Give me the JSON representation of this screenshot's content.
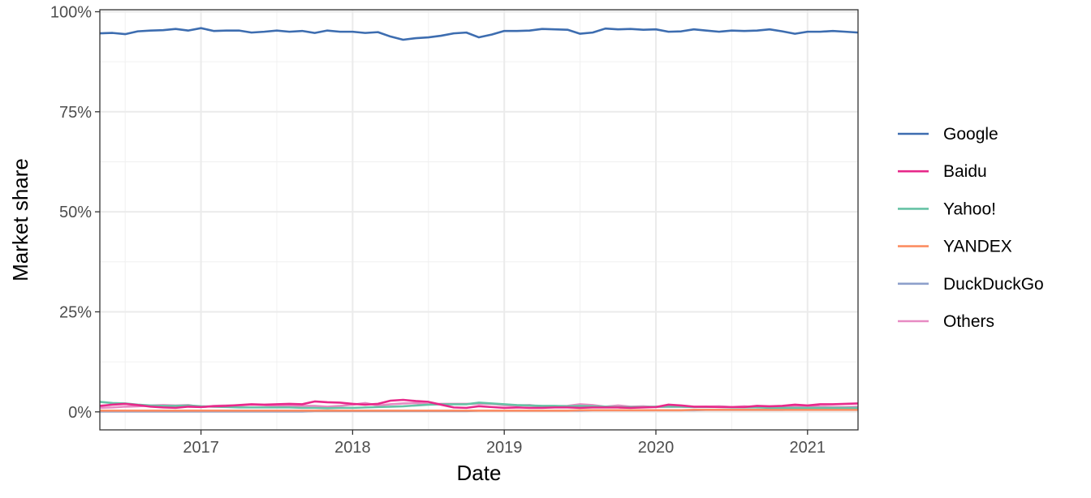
{
  "chart_data": {
    "type": "line",
    "title": "",
    "xlabel": "Date",
    "ylabel": "Market share",
    "xlim": [
      2016.333,
      2021.333
    ],
    "ylim": [
      -0.045,
      1.005
    ],
    "x_ticks": [
      2017,
      2018,
      2019,
      2020,
      2021
    ],
    "x_tick_labels": [
      "2017",
      "2018",
      "2019",
      "2020",
      "2021"
    ],
    "y_ticks": [
      0,
      0.25,
      0.5,
      0.75,
      1
    ],
    "y_tick_labels": [
      "0%",
      "25%",
      "50%",
      "75%",
      "100%"
    ],
    "grid": true,
    "legend_position": "right",
    "x": [
      2016.333,
      2016.417,
      2016.5,
      2016.583,
      2016.667,
      2016.75,
      2016.833,
      2016.917,
      2017.0,
      2017.083,
      2017.167,
      2017.25,
      2017.333,
      2017.417,
      2017.5,
      2017.583,
      2017.667,
      2017.75,
      2017.833,
      2017.917,
      2018.0,
      2018.083,
      2018.167,
      2018.25,
      2018.333,
      2018.417,
      2018.5,
      2018.583,
      2018.667,
      2018.75,
      2018.833,
      2018.917,
      2019.0,
      2019.083,
      2019.167,
      2019.25,
      2019.333,
      2019.417,
      2019.5,
      2019.583,
      2019.667,
      2019.75,
      2019.833,
      2019.917,
      2020.0,
      2020.083,
      2020.167,
      2020.25,
      2020.333,
      2020.417,
      2020.5,
      2020.583,
      2020.667,
      2020.75,
      2020.833,
      2020.917,
      2021.0,
      2021.083,
      2021.167,
      2021.25,
      2021.333
    ],
    "series": [
      {
        "name": "Google",
        "color": "#3d6db0",
        "values": [
          0.946,
          0.947,
          0.944,
          0.951,
          0.953,
          0.954,
          0.957,
          0.953,
          0.959,
          0.952,
          0.953,
          0.953,
          0.948,
          0.95,
          0.953,
          0.95,
          0.952,
          0.947,
          0.953,
          0.95,
          0.95,
          0.947,
          0.949,
          0.938,
          0.93,
          0.934,
          0.936,
          0.94,
          0.946,
          0.948,
          0.936,
          0.943,
          0.952,
          0.952,
          0.953,
          0.957,
          0.956,
          0.955,
          0.945,
          0.948,
          0.958,
          0.956,
          0.957,
          0.955,
          0.956,
          0.95,
          0.951,
          0.956,
          0.953,
          0.95,
          0.953,
          0.952,
          0.953,
          0.956,
          0.951,
          0.945,
          0.95,
          0.95,
          0.952,
          0.95,
          0.948
        ]
      },
      {
        "name": "Baidu",
        "color": "#e7298a",
        "values": [
          0.015,
          0.018,
          0.02,
          0.017,
          0.013,
          0.011,
          0.01,
          0.013,
          0.012,
          0.014,
          0.015,
          0.017,
          0.019,
          0.018,
          0.019,
          0.02,
          0.019,
          0.026,
          0.024,
          0.023,
          0.02,
          0.018,
          0.02,
          0.028,
          0.03,
          0.027,
          0.025,
          0.018,
          0.011,
          0.01,
          0.014,
          0.012,
          0.01,
          0.011,
          0.01,
          0.01,
          0.011,
          0.011,
          0.01,
          0.011,
          0.011,
          0.011,
          0.01,
          0.011,
          0.012,
          0.018,
          0.016,
          0.013,
          0.013,
          0.012,
          0.012,
          0.012,
          0.015,
          0.014,
          0.015,
          0.018,
          0.016,
          0.019,
          0.019,
          0.02,
          0.021
        ]
      },
      {
        "name": "Yahoo!",
        "color": "#66c2a5",
        "values": [
          0.025,
          0.022,
          0.021,
          0.018,
          0.016,
          0.015,
          0.015,
          0.016,
          0.014,
          0.013,
          0.012,
          0.011,
          0.011,
          0.011,
          0.011,
          0.011,
          0.01,
          0.01,
          0.009,
          0.01,
          0.01,
          0.011,
          0.012,
          0.013,
          0.014,
          0.016,
          0.018,
          0.019,
          0.019,
          0.019,
          0.023,
          0.021,
          0.019,
          0.017,
          0.016,
          0.015,
          0.015,
          0.014,
          0.015,
          0.014,
          0.013,
          0.012,
          0.012,
          0.012,
          0.013,
          0.013,
          0.013,
          0.012,
          0.012,
          0.012,
          0.011,
          0.011,
          0.011,
          0.01,
          0.01,
          0.01,
          0.01,
          0.01,
          0.01,
          0.01,
          0.01
        ]
      },
      {
        "name": "YANDEX",
        "color": "#fc8d62",
        "values": [
          0.003,
          0.003,
          0.003,
          0.003,
          0.003,
          0.003,
          0.003,
          0.003,
          0.003,
          0.003,
          0.003,
          0.003,
          0.003,
          0.003,
          0.003,
          0.003,
          0.003,
          0.003,
          0.003,
          0.003,
          0.003,
          0.003,
          0.003,
          0.003,
          0.003,
          0.003,
          0.003,
          0.003,
          0.003,
          0.003,
          0.003,
          0.003,
          0.003,
          0.003,
          0.003,
          0.003,
          0.003,
          0.003,
          0.004,
          0.004,
          0.004,
          0.004,
          0.004,
          0.004,
          0.004,
          0.004,
          0.004,
          0.005,
          0.005,
          0.005,
          0.005,
          0.005,
          0.005,
          0.005,
          0.005,
          0.005,
          0.005,
          0.005,
          0.005,
          0.005,
          0.005
        ]
      },
      {
        "name": "DuckDuckGo",
        "color": "#8da0cb",
        "values": [
          0.001,
          0.001,
          0.001,
          0.001,
          0.001,
          0.001,
          0.001,
          0.001,
          0.001,
          0.001,
          0.001,
          0.001,
          0.001,
          0.001,
          0.001,
          0.001,
          0.001,
          0.002,
          0.002,
          0.002,
          0.002,
          0.002,
          0.002,
          0.002,
          0.002,
          0.002,
          0.002,
          0.002,
          0.002,
          0.002,
          0.003,
          0.003,
          0.003,
          0.003,
          0.003,
          0.003,
          0.003,
          0.003,
          0.003,
          0.004,
          0.004,
          0.004,
          0.004,
          0.004,
          0.004,
          0.004,
          0.004,
          0.004,
          0.005,
          0.005,
          0.005,
          0.005,
          0.005,
          0.005,
          0.005,
          0.006,
          0.006,
          0.006,
          0.006,
          0.006,
          0.006
        ]
      },
      {
        "name": "Others",
        "color": "#e78ac3",
        "values": [
          0.01,
          0.011,
          0.013,
          0.014,
          0.016,
          0.017,
          0.016,
          0.017,
          0.012,
          0.015,
          0.016,
          0.016,
          0.018,
          0.017,
          0.014,
          0.016,
          0.015,
          0.015,
          0.013,
          0.015,
          0.018,
          0.022,
          0.016,
          0.019,
          0.021,
          0.022,
          0.019,
          0.02,
          0.02,
          0.02,
          0.02,
          0.02,
          0.017,
          0.016,
          0.017,
          0.013,
          0.014,
          0.015,
          0.019,
          0.017,
          0.013,
          0.016,
          0.013,
          0.014,
          0.012,
          0.013,
          0.013,
          0.012,
          0.013,
          0.014,
          0.012,
          0.014,
          0.011,
          0.012,
          0.013,
          0.015,
          0.015,
          0.013,
          0.012,
          0.012,
          0.013
        ]
      }
    ]
  }
}
